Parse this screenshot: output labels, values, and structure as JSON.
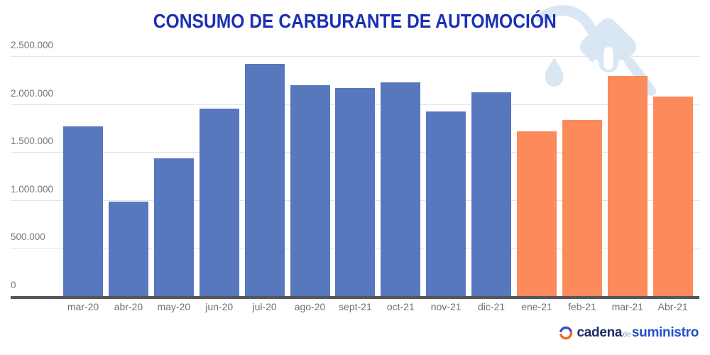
{
  "title": {
    "text": "CONSUMO DE CARBURANTE DE AUTOMOCIÓN"
  },
  "chart_data": {
    "type": "bar",
    "title": "CONSUMO DE CARBURANTE DE AUTOMOCIÓN",
    "categories": [
      "mar-20",
      "abr-20",
      "may-20",
      "jun-20",
      "jul-20",
      "ago-20",
      "sept-21",
      "oct-21",
      "nov-21",
      "dic-21",
      "ene-21",
      "feb-21",
      "mar-21",
      "Abr-21"
    ],
    "values": [
      1770000,
      985000,
      1435000,
      1955000,
      2420000,
      2200000,
      2170000,
      2230000,
      1920000,
      2125000,
      1715000,
      1835000,
      2290000,
      2075000
    ],
    "bar_colors": [
      "blue",
      "blue",
      "blue",
      "blue",
      "blue",
      "blue",
      "blue",
      "blue",
      "blue",
      "blue",
      "orange",
      "orange",
      "orange",
      "orange"
    ],
    "color_map": {
      "blue": "#5878BE",
      "orange": "#FC8A5A"
    },
    "ylim": [
      0,
      2500000
    ],
    "y_ticks": [
      {
        "value": 0,
        "label": "0"
      },
      {
        "value": 500000,
        "label": "500.000"
      },
      {
        "value": 1000000,
        "label": "1.000.000"
      },
      {
        "value": 1500000,
        "label": "1.500.000"
      },
      {
        "value": 2000000,
        "label": "2.000.000"
      },
      {
        "value": 2500000,
        "label": "2.500.000"
      }
    ],
    "grid": true,
    "legend": "none",
    "xlabel": "",
    "ylabel": ""
  },
  "watermark": {
    "icon": "fuel-pump-nozzle-with-drop",
    "color": "#D9E7F5"
  },
  "logo": {
    "icon": "cadena-de-suministro-swirl",
    "icon_colors": {
      "blue": "#3A53C5",
      "orange": "#F06A1D"
    },
    "part1": "cadena",
    "part2": "de",
    "part3": "suministro",
    "text_colors": {
      "part1": "#1B2C6B",
      "part2": "#97A0A8",
      "part3": "#2251C9"
    }
  },
  "colors": {
    "title": "#1C30B4",
    "axis_label": "#757575",
    "x_label": "#707074",
    "gridline": "#E3E3E3",
    "baseline": "#54565E",
    "background": "#FFFFFF"
  }
}
